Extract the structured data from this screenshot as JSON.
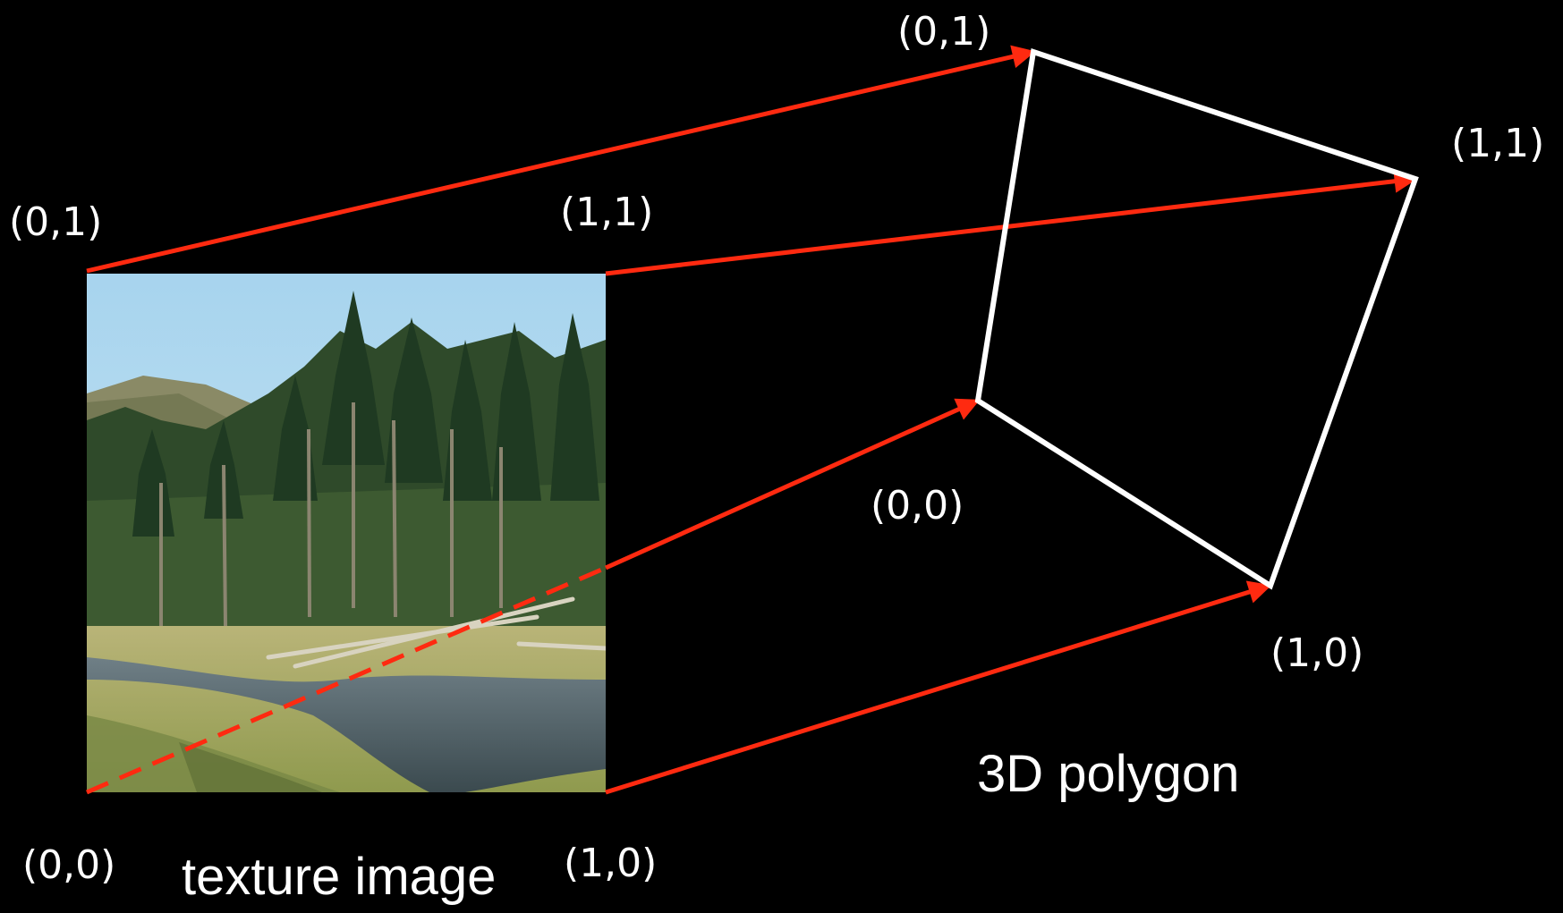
{
  "texture": {
    "caption": "texture image",
    "corners": {
      "top_left": "(0,1)",
      "top_right": "(1,1)",
      "bottom_left": "(0,0)",
      "bottom_right": "(1,0)"
    }
  },
  "polygon": {
    "caption": "3D polygon",
    "corners": {
      "top": "(0,1)",
      "right": "(1,1)",
      "left": "(0,0)",
      "bottom": "(1,0)"
    }
  },
  "colors": {
    "background": "#000000",
    "mapping_arrow": "#ff2a10",
    "polygon_edge": "#ffffff",
    "text": "#ffffff"
  }
}
